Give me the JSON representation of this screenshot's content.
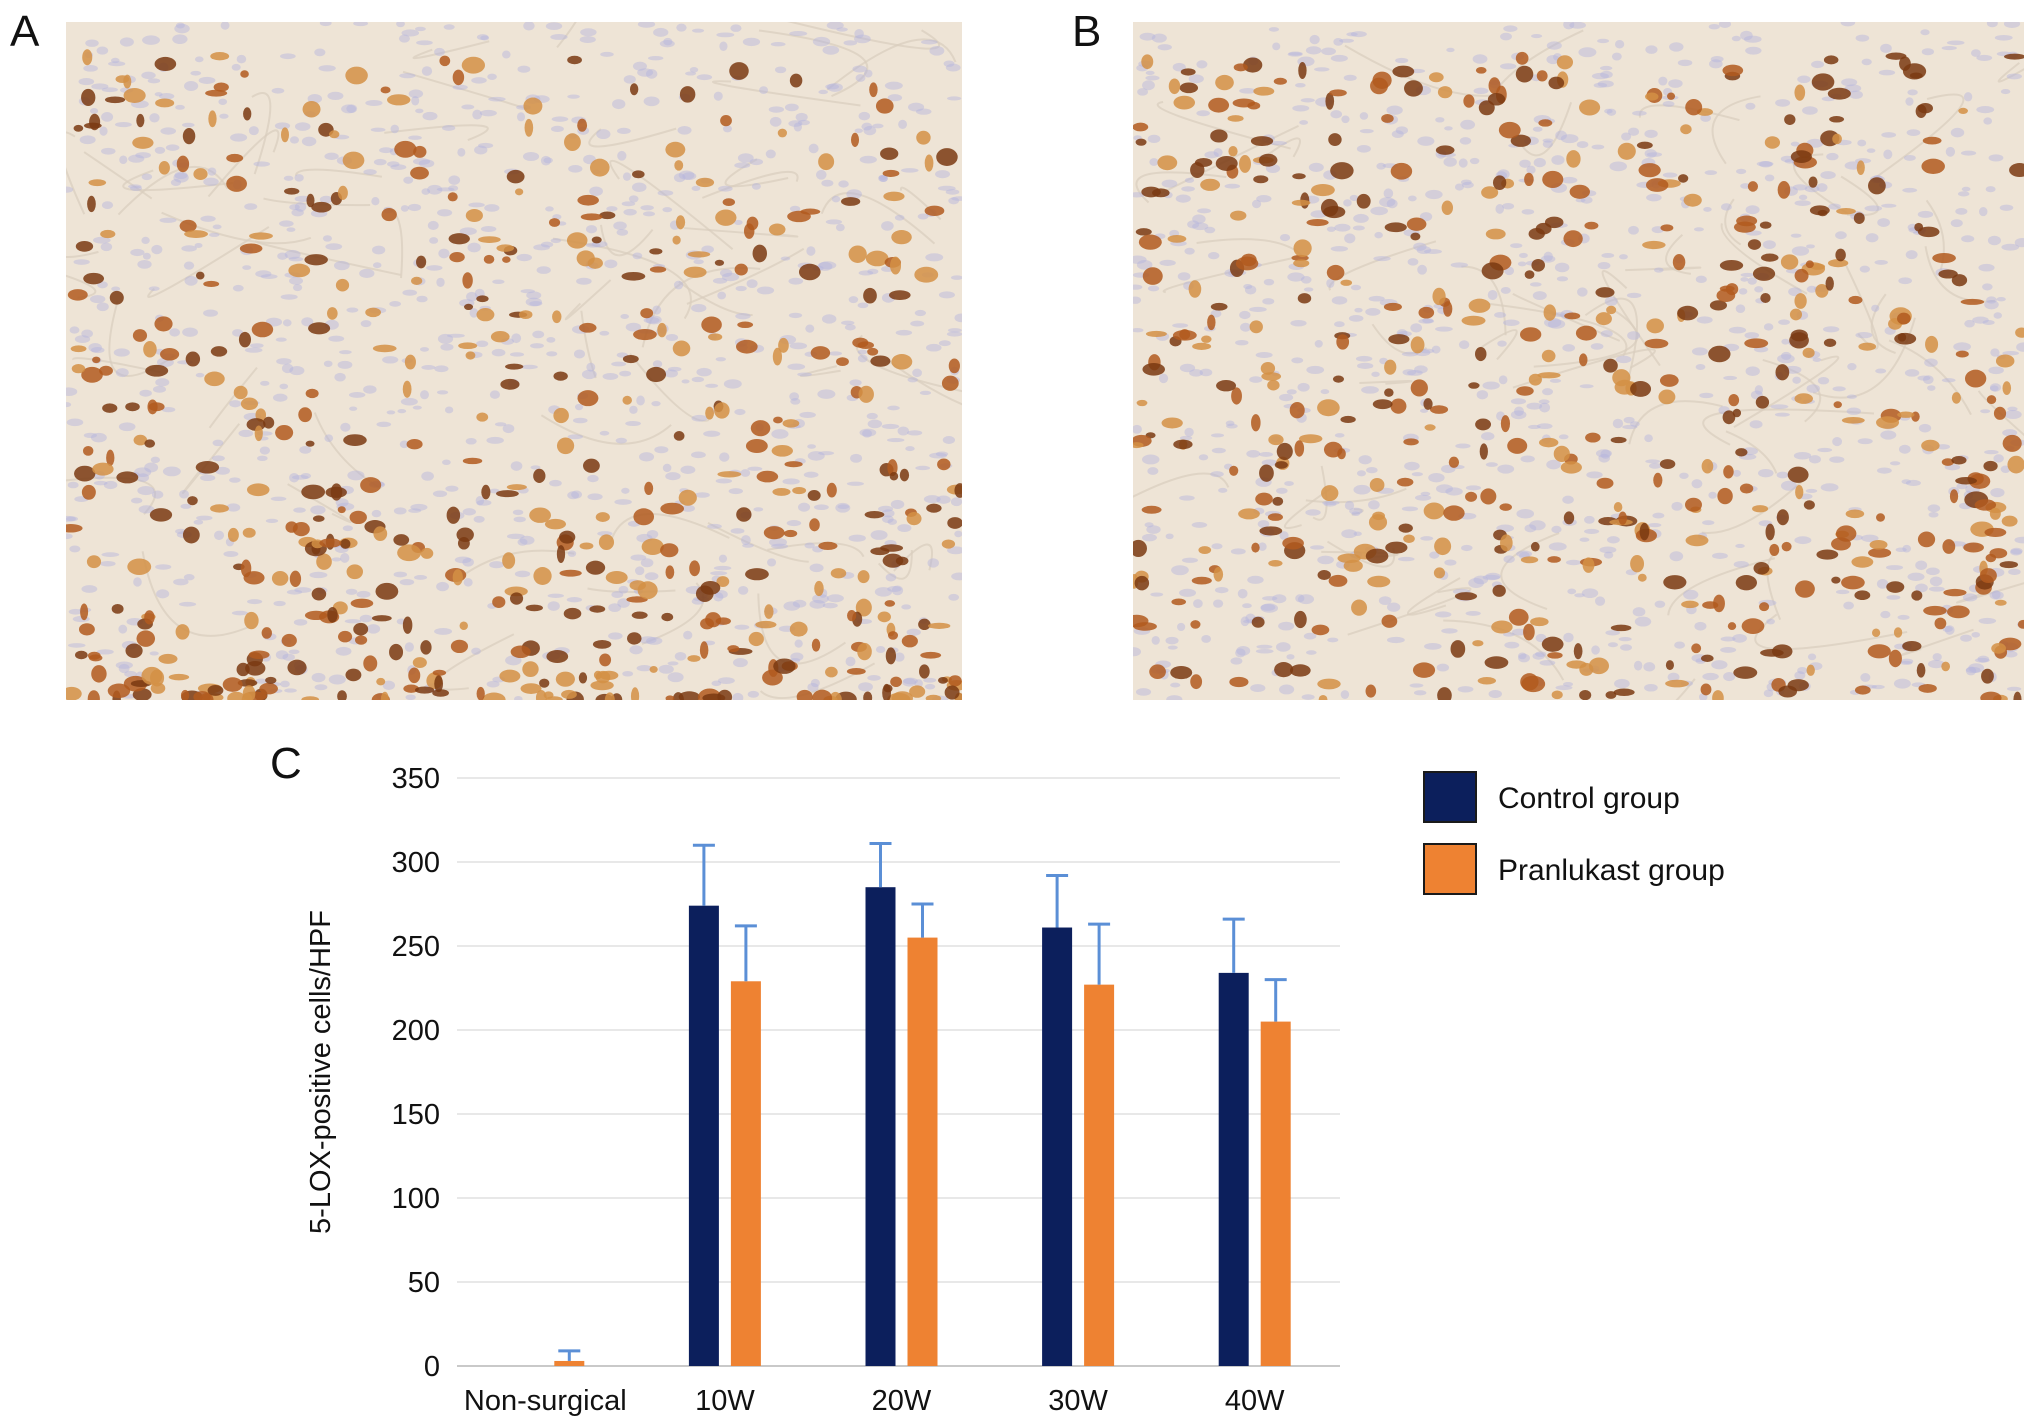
{
  "panels": {
    "a_label": "A",
    "b_label": "B",
    "c_label": "C"
  },
  "chart_data": {
    "type": "bar",
    "categories": [
      "Non-surgical",
      "10W",
      "20W",
      "30W",
      "40W"
    ],
    "series": [
      {
        "name": "Control group",
        "color": "#0c1f5c",
        "values": [
          null,
          274,
          285,
          261,
          234
        ],
        "errors": [
          null,
          36,
          26,
          31,
          32
        ]
      },
      {
        "name": "Pranlukast group",
        "color": "#ee8232",
        "values": [
          3,
          229,
          255,
          227,
          205
        ],
        "errors": [
          6,
          33,
          20,
          36,
          25
        ]
      }
    ],
    "xlabel": "",
    "ylabel": "5-LOX-positive cells/HPF",
    "ylim": [
      0,
      350
    ],
    "yticks": [
      0,
      50,
      100,
      150,
      200,
      250,
      300,
      350
    ],
    "grid": true,
    "legend_position": "right",
    "error_bar_color": "#5b8fd6"
  },
  "micrographs": {
    "background": "#eee4d6",
    "stroma_line": "#d8cdbd",
    "nucleus_blue": "#b3b3de",
    "stain_dark": "#7a3a12",
    "stain_mid": "#b25a1e",
    "stain_light": "#d49045"
  }
}
